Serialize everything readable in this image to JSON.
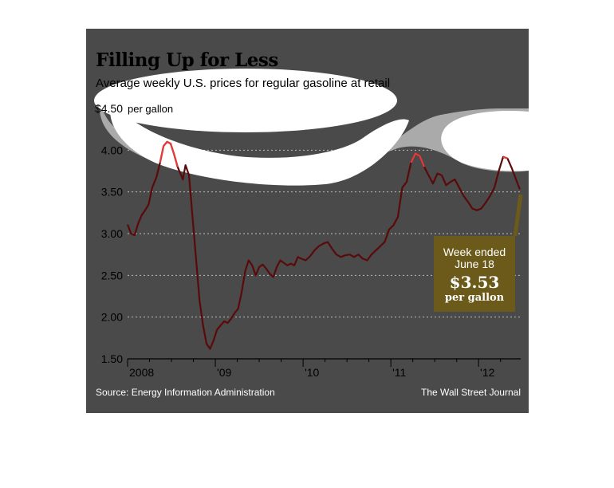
{
  "chart_data": {
    "type": "line",
    "title": "Filling Up for Less",
    "subtitle": "Average weekly U.S. prices for regular gasoline at retail",
    "source": "Source: Energy Information Administration",
    "credit": "The Wall Street Journal",
    "ylim": [
      1.5,
      4.5
    ],
    "y_ticks": [
      {
        "v": 4.5,
        "label": "$4.50"
      },
      {
        "v": 4.0,
        "label": "4.00"
      },
      {
        "v": 3.5,
        "label": "3.50"
      },
      {
        "v": 3.0,
        "label": "3.00"
      },
      {
        "v": 2.5,
        "label": "2.50"
      },
      {
        "v": 2.0,
        "label": "2.00"
      },
      {
        "v": 1.5,
        "label": "1.50"
      }
    ],
    "y_unit": "per gallon",
    "x_range": [
      2008.0,
      2012.48
    ],
    "x_ticks": [
      {
        "v": 2008,
        "label": "2008"
      },
      {
        "v": 2009,
        "label": "'09"
      },
      {
        "v": 2010,
        "label": "'10"
      },
      {
        "v": 2011,
        "label": "'11"
      },
      {
        "v": 2012,
        "label": "'12"
      }
    ],
    "grid": "horizontal dotted",
    "colors": {
      "background": "#4a4a4a",
      "line": "#5a0a0a",
      "highlight": "#e83a3a",
      "callout": "#6b5a19",
      "grid": "#bdbdbd",
      "text": "#000000"
    },
    "series": [
      {
        "x": [
          2008.0,
          2008.04,
          2008.08,
          2008.12,
          2008.16,
          2008.2,
          2008.24,
          2008.28,
          2008.33,
          2008.37,
          2008.41,
          2008.45,
          2008.49,
          2008.53,
          2008.57,
          2008.61,
          2008.63,
          2008.66,
          2008.7,
          2008.74,
          2008.78,
          2008.82,
          2008.86,
          2008.9,
          2008.94,
          2008.98,
          2009.02,
          2009.06,
          2009.1,
          2009.14,
          2009.18,
          2009.22,
          2009.26,
          2009.3,
          2009.34,
          2009.38,
          2009.42,
          2009.46,
          2009.5,
          2009.54,
          2009.58,
          2009.62,
          2009.66,
          2009.7,
          2009.74,
          2009.78,
          2009.82,
          2009.86,
          2009.9,
          2009.94,
          2009.98,
          2010.03,
          2010.08,
          2010.13,
          2010.18,
          2010.23,
          2010.28,
          2010.33,
          2010.38,
          2010.43,
          2010.48,
          2010.53,
          2010.58,
          2010.63,
          2010.68,
          2010.73,
          2010.78,
          2010.83,
          2010.88,
          2010.93,
          2010.98,
          2011.03,
          2011.08,
          2011.13,
          2011.18,
          2011.23,
          2011.28,
          2011.33,
          2011.38,
          2011.43,
          2011.48,
          2011.53,
          2011.58,
          2011.63,
          2011.68,
          2011.73,
          2011.78,
          2011.83,
          2011.88,
          2011.93,
          2011.98,
          2012.03,
          2012.08,
          2012.13,
          2012.18,
          2012.23,
          2012.28,
          2012.33,
          2012.38,
          2012.43,
          2012.47
        ],
        "values": [
          3.11,
          3.0,
          2.98,
          3.12,
          3.22,
          3.28,
          3.35,
          3.55,
          3.68,
          3.85,
          4.05,
          4.1,
          4.08,
          3.95,
          3.8,
          3.7,
          3.65,
          3.82,
          3.7,
          3.2,
          2.7,
          2.2,
          1.9,
          1.68,
          1.62,
          1.72,
          1.85,
          1.9,
          1.95,
          1.93,
          1.98,
          2.05,
          2.1,
          2.3,
          2.55,
          2.68,
          2.62,
          2.5,
          2.6,
          2.63,
          2.58,
          2.52,
          2.48,
          2.6,
          2.68,
          2.65,
          2.62,
          2.64,
          2.62,
          2.72,
          2.7,
          2.68,
          2.73,
          2.8,
          2.85,
          2.88,
          2.9,
          2.82,
          2.75,
          2.72,
          2.74,
          2.75,
          2.72,
          2.75,
          2.7,
          2.68,
          2.75,
          2.8,
          2.85,
          2.9,
          3.05,
          3.1,
          3.2,
          3.55,
          3.62,
          3.85,
          3.96,
          3.93,
          3.8,
          3.7,
          3.6,
          3.72,
          3.7,
          3.58,
          3.62,
          3.65,
          3.55,
          3.45,
          3.38,
          3.3,
          3.28,
          3.3,
          3.37,
          3.45,
          3.55,
          3.75,
          3.92,
          3.9,
          3.78,
          3.64,
          3.53
        ]
      }
    ],
    "callout": {
      "line1": "Week ended",
      "line2": "June 18",
      "value": "$3.53",
      "unit": "per gallon"
    }
  }
}
